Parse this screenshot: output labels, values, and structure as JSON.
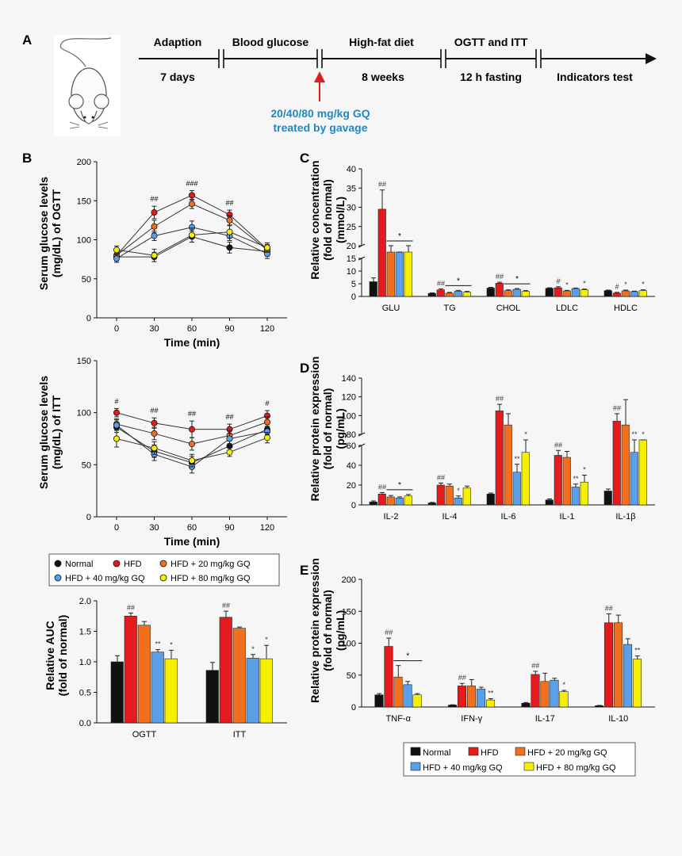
{
  "panels": {
    "a": "A",
    "b": "B",
    "c": "C",
    "d": "D",
    "e": "E"
  },
  "colors": {
    "Normal": "#111111",
    "HFD": "#e41a1c",
    "GQ20": "#f07020",
    "GQ40": "#5aa0e8",
    "GQ80": "#f5f000",
    "arrow": "#e41a1c",
    "gavage_text": "#1e88c8"
  },
  "timeline": {
    "stages": [
      "Adaption",
      "Blood glucose",
      "High-fat diet",
      "OGTT and ITT"
    ],
    "durations": [
      "7 days",
      "",
      "8 weeks",
      "12 h fasting",
      "Indicators test"
    ],
    "treatment_line1": "20/40/80 mg/kg GQ",
    "treatment_line2": "treated by gavage"
  },
  "legend_b": [
    "Normal",
    "HFD",
    "HFD + 20 mg/kg GQ",
    "HFD + 40 mg/kg GQ",
    "HFD + 80 mg/kg GQ"
  ],
  "legend_e": [
    "Normal",
    "HFD",
    "HFD + 20 mg/kg GQ",
    "HFD + 40 mg/kg GQ",
    "HFD + 80 mg/kg GQ"
  ],
  "chart_data": [
    {
      "id": "ogtt",
      "type": "line",
      "xlabel": "Time (min)",
      "ylabel": "Serum glucose levels (mg/dL) of OGTT",
      "x": [
        0,
        30,
        60,
        90,
        120
      ],
      "ylim": [
        0,
        200
      ],
      "yticks": [
        0,
        50,
        100,
        150,
        200
      ],
      "series": [
        {
          "name": "Normal",
          "values": [
            78,
            78,
            104,
            90,
            85
          ],
          "err": [
            5,
            6,
            7,
            7,
            6
          ]
        },
        {
          "name": "HFD",
          "values": [
            80,
            135,
            157,
            132,
            88
          ],
          "err": [
            5,
            8,
            6,
            6,
            6
          ]
        },
        {
          "name": "HFD + 20 mg/kg GQ",
          "values": [
            80,
            117,
            146,
            125,
            87
          ],
          "err": [
            5,
            8,
            6,
            6,
            6
          ]
        },
        {
          "name": "HFD + 40 mg/kg GQ",
          "values": [
            76,
            105,
            116,
            105,
            82
          ],
          "err": [
            5,
            6,
            8,
            6,
            6
          ]
        },
        {
          "name": "HFD + 80 mg/kg GQ",
          "values": [
            87,
            80,
            106,
            110,
            90
          ],
          "err": [
            5,
            8,
            9,
            8,
            6
          ]
        }
      ],
      "annotations": [
        {
          "x": 30,
          "text": "##"
        },
        {
          "x": 60,
          "text": "###"
        },
        {
          "x": 90,
          "text": "##"
        }
      ]
    },
    {
      "id": "itt",
      "type": "line",
      "xlabel": "Time (min)",
      "ylabel": "Serum glucose levels (mg/dL) of ITT",
      "x": [
        0,
        30,
        60,
        90,
        120
      ],
      "ylim": [
        0,
        150
      ],
      "yticks": [
        0,
        50,
        100,
        150
      ],
      "series": [
        {
          "name": "Normal",
          "values": [
            86,
            63,
            52,
            68,
            84
          ],
          "err": [
            5,
            6,
            6,
            5,
            5
          ]
        },
        {
          "name": "HFD",
          "values": [
            100,
            90,
            84,
            84,
            97
          ],
          "err": [
            4,
            5,
            8,
            5,
            5
          ]
        },
        {
          "name": "HFD + 20 mg/kg GQ",
          "values": [
            89,
            80,
            70,
            78,
            91
          ],
          "err": [
            5,
            6,
            6,
            5,
            5
          ]
        },
        {
          "name": "HFD + 40 mg/kg GQ",
          "values": [
            88,
            60,
            48,
            75,
            82
          ],
          "err": [
            5,
            6,
            6,
            5,
            5
          ]
        },
        {
          "name": "HFD + 80 mg/kg GQ",
          "values": [
            75,
            66,
            54,
            62,
            76
          ],
          "err": [
            8,
            6,
            6,
            4,
            5
          ]
        }
      ],
      "annotations": [
        {
          "x": 0,
          "text": "#"
        },
        {
          "x": 30,
          "text": "##"
        },
        {
          "x": 60,
          "text": "##"
        },
        {
          "x": 90,
          "text": "##"
        },
        {
          "x": 120,
          "text": "#"
        }
      ]
    },
    {
      "id": "auc",
      "type": "bar",
      "ylabel": "Relative AUC (fold of normal)",
      "categories": [
        "OGTT",
        "ITT"
      ],
      "ylim": [
        0,
        2.0
      ],
      "yticks": [
        "0.0",
        "0.5",
        "1.0",
        "1.5",
        "2.0"
      ],
      "series": [
        {
          "name": "Normal",
          "values": [
            1.0,
            0.86
          ],
          "err": [
            0.1,
            0.13
          ],
          "labels": [
            "",
            ""
          ]
        },
        {
          "name": "HFD",
          "values": [
            1.75,
            1.73
          ],
          "err": [
            0.05,
            0.1
          ],
          "labels": [
            "##",
            "##"
          ]
        },
        {
          "name": "HFD + 20 mg/kg GQ",
          "values": [
            1.6,
            1.55
          ],
          "err": [
            0.06,
            0.02
          ],
          "labels": [
            "",
            ""
          ]
        },
        {
          "name": "HFD + 40 mg/kg GQ",
          "values": [
            1.16,
            1.06
          ],
          "err": [
            0.04,
            0.06
          ],
          "labels": [
            "**",
            "*"
          ]
        },
        {
          "name": "HFD + 80 mg/kg GQ",
          "values": [
            1.05,
            1.05
          ],
          "err": [
            0.14,
            0.22
          ],
          "labels": [
            "*",
            "*"
          ]
        }
      ]
    },
    {
      "id": "lipids",
      "type": "bar",
      "ylabel": "Relative concentration (fold of normal) (mmol/L)",
      "categories": [
        "GLU",
        "TG",
        "CHOL",
        "LDLC",
        "HDLC"
      ],
      "yticks_low": [
        "0",
        "5",
        "10",
        "15"
      ],
      "yticks_high": [
        "20",
        "25",
        "30",
        "35",
        "40"
      ],
      "series": [
        {
          "name": "Normal",
          "values": [
            5.8,
            1.2,
            3.3,
            3.2,
            2.3
          ],
          "err": [
            1.5,
            0.2,
            0.3,
            0.2,
            0.2
          ],
          "labels": [
            "",
            "",
            "",
            "",
            ""
          ]
        },
        {
          "name": "HFD",
          "values": [
            29.5,
            2.6,
            5.2,
            3.4,
            1.3
          ],
          "err": [
            5,
            0.4,
            0.4,
            0.4,
            0.3
          ],
          "labels": [
            "##",
            "##",
            "##",
            "#",
            "#"
          ]
        },
        {
          "name": "HFD + 20 mg/kg GQ",
          "values": [
            17.5,
            1.3,
            2.3,
            2.2,
            2.2
          ],
          "err": [
            2.5,
            0.3,
            0.3,
            0.2,
            0.3
          ],
          "labels": [
            "",
            "",
            "",
            "*",
            "*"
          ]
        },
        {
          "name": "HFD + 40 mg/kg GQ",
          "values": [
            17.2,
            2.1,
            2.8,
            3.1,
            1.9
          ],
          "err": [
            2.5,
            0.3,
            0.3,
            0.2,
            0.2
          ],
          "labels": [
            "",
            "",
            "",
            "",
            ""
          ]
        },
        {
          "name": "HFD + 80 mg/kg GQ",
          "values": [
            17.5,
            1.7,
            2.0,
            2.6,
            2.3
          ],
          "err": [
            2.5,
            0.3,
            0.3,
            0.3,
            0.3
          ],
          "labels": [
            "",
            "",
            "",
            "*",
            "*"
          ]
        }
      ],
      "group_marks": [
        {
          "category": "GLU",
          "text": "*"
        },
        {
          "category": "TG",
          "text": "*"
        },
        {
          "category": "CHOL",
          "text": "*"
        }
      ]
    },
    {
      "id": "cytokines1",
      "type": "bar",
      "ylabel": "Relative protein expression (fold of normal) (pg/mL)",
      "categories": [
        "IL-2",
        "IL-4",
        "IL-6",
        "IL-1",
        "IL-1β"
      ],
      "yticks_low": [
        "0",
        "20",
        "40",
        "60"
      ],
      "yticks_high": [
        "80",
        "100",
        "120",
        "140"
      ],
      "series": [
        {
          "name": "Normal",
          "values": [
            3,
            2,
            11,
            5,
            14
          ],
          "err": [
            1,
            0.5,
            1,
            1,
            2
          ],
          "labels": [
            "",
            "",
            "",
            "",
            ""
          ]
        },
        {
          "name": "HFD",
          "values": [
            11,
            20,
            105,
            50,
            94
          ],
          "err": [
            1.5,
            2,
            7,
            5,
            8
          ],
          "labels": [
            "##",
            "##",
            "##",
            "##",
            "##"
          ]
        },
        {
          "name": "HFD + 20 mg/kg GQ",
          "values": [
            8,
            19,
            90,
            48,
            90
          ],
          "err": [
            1.5,
            2,
            12,
            6,
            27
          ],
          "labels": [
            "",
            "",
            "",
            "",
            ""
          ]
        },
        {
          "name": "HFD + 40 mg/kg GQ",
          "values": [
            7,
            7,
            33,
            18,
            53
          ],
          "err": [
            1,
            2,
            8,
            3,
            8
          ],
          "labels": [
            "",
            "*",
            "**",
            "**",
            "**"
          ]
        },
        {
          "name": "HFD + 80 mg/kg GQ",
          "values": [
            9,
            17,
            53,
            23,
            66
          ],
          "err": [
            1.5,
            2,
            8,
            7,
            3
          ],
          "labels": [
            "",
            "",
            "*",
            "*",
            "*"
          ]
        }
      ],
      "group_marks": [
        {
          "category": "IL-2",
          "text": "*"
        }
      ]
    },
    {
      "id": "cytokines2",
      "type": "bar",
      "ylabel": "Relative protein expression (fold of normal) (pg/mL)",
      "categories": [
        "TNF-α",
        "IFN-γ",
        "IL-17",
        "IL-10"
      ],
      "ylim": [
        0,
        200
      ],
      "yticks": [
        "0",
        "50",
        "100",
        "150",
        "200"
      ],
      "series": [
        {
          "name": "Normal",
          "values": [
            19,
            3,
            6,
            2
          ],
          "err": [
            2,
            0.5,
            1,
            0.5
          ],
          "labels": [
            "",
            "",
            "",
            ""
          ]
        },
        {
          "name": "HFD",
          "values": [
            95,
            33,
            51,
            132
          ],
          "err": [
            13,
            4,
            5,
            14
          ],
          "labels": [
            "##",
            "##",
            "##",
            "##"
          ]
        },
        {
          "name": "HFD + 20 mg/kg GQ",
          "values": [
            47,
            33,
            40,
            132
          ],
          "err": [
            18,
            10,
            13,
            12
          ],
          "labels": [
            "",
            "",
            "",
            ""
          ]
        },
        {
          "name": "HFD + 40 mg/kg GQ",
          "values": [
            35,
            28,
            42,
            98
          ],
          "err": [
            5,
            3,
            3,
            9
          ],
          "labels": [
            "",
            "",
            "",
            ""
          ]
        },
        {
          "name": "HFD + 80 mg/kg GQ",
          "values": [
            19,
            11,
            24,
            75
          ],
          "err": [
            2,
            2,
            2,
            5
          ],
          "labels": [
            "",
            "**",
            "*",
            "**"
          ]
        }
      ],
      "group_marks": [
        {
          "category": "TNF-α",
          "text": "*"
        }
      ]
    }
  ]
}
